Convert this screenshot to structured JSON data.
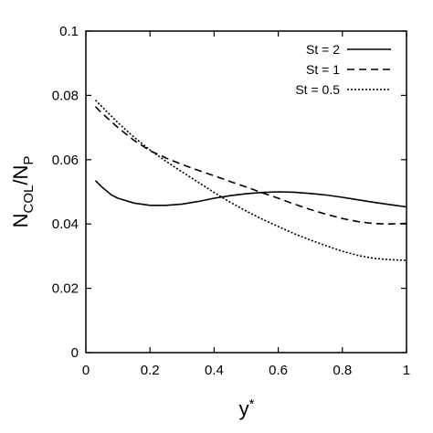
{
  "chart_data": {
    "type": "line",
    "xlabel_main": "y",
    "xlabel_sup": "*",
    "ylabel_main": "N",
    "ylabel_sub1": "COL",
    "ylabel_sep": "/N",
    "ylabel_sub2": "P",
    "xlim": [
      0,
      1
    ],
    "ylim": [
      0,
      0.1
    ],
    "x_ticks": [
      0,
      0.2,
      0.4,
      0.6,
      0.8,
      1
    ],
    "x_tick_labels": [
      "0",
      "0.2",
      "0.4",
      "0.6",
      "0.8",
      "1"
    ],
    "y_ticks": [
      0,
      0.02,
      0.04,
      0.06,
      0.08,
      0.1
    ],
    "y_tick_labels": [
      "0",
      "0.02",
      "0.04",
      "0.06",
      "0.08",
      "0.1"
    ],
    "grid": false,
    "legend_position": "top-right",
    "series": [
      {
        "name": "St = 2",
        "dash": "solid",
        "x": [
          0.03,
          0.05,
          0.08,
          0.1,
          0.15,
          0.2,
          0.25,
          0.3,
          0.35,
          0.4,
          0.45,
          0.5,
          0.55,
          0.6,
          0.65,
          0.7,
          0.75,
          0.8,
          0.85,
          0.9,
          0.95,
          1.0
        ],
        "y": [
          0.0535,
          0.0515,
          0.049,
          0.048,
          0.0465,
          0.0458,
          0.0458,
          0.0462,
          0.047,
          0.048,
          0.0488,
          0.0494,
          0.0498,
          0.05,
          0.0499,
          0.0495,
          0.049,
          0.0483,
          0.0475,
          0.0467,
          0.046,
          0.0453
        ]
      },
      {
        "name": "St = 1",
        "dash": "dashed",
        "x": [
          0.03,
          0.05,
          0.1,
          0.15,
          0.2,
          0.25,
          0.3,
          0.35,
          0.4,
          0.45,
          0.5,
          0.55,
          0.6,
          0.65,
          0.7,
          0.75,
          0.8,
          0.85,
          0.9,
          0.95,
          1.0
        ],
        "y": [
          0.0765,
          0.0745,
          0.07,
          0.066,
          0.0628,
          0.0605,
          0.0585,
          0.0567,
          0.055,
          0.0532,
          0.0515,
          0.0497,
          0.048,
          0.0462,
          0.0445,
          0.043,
          0.0417,
          0.0407,
          0.0401,
          0.04,
          0.0402
        ]
      },
      {
        "name": "St = 0.5",
        "dash": "dotted",
        "x": [
          0.03,
          0.05,
          0.1,
          0.15,
          0.2,
          0.25,
          0.3,
          0.35,
          0.4,
          0.45,
          0.5,
          0.55,
          0.6,
          0.65,
          0.7,
          0.75,
          0.8,
          0.85,
          0.9,
          0.95,
          1.0
        ],
        "y": [
          0.0785,
          0.0765,
          0.0715,
          0.067,
          0.063,
          0.0595,
          0.0562,
          0.053,
          0.0498,
          0.0468,
          0.044,
          0.0415,
          0.0392,
          0.037,
          0.035,
          0.0332,
          0.0315,
          0.0302,
          0.0293,
          0.0289,
          0.0287
        ]
      }
    ]
  }
}
